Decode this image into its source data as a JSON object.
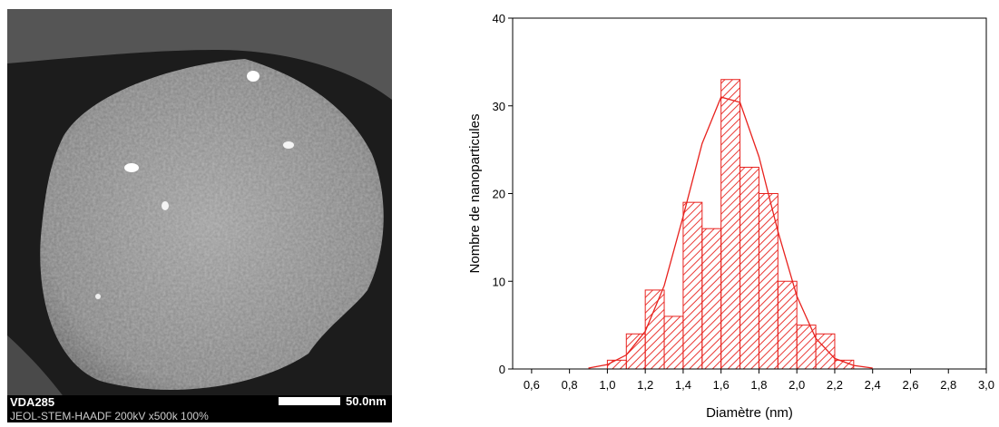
{
  "image": {
    "sample": "VDA285",
    "instrument": "JEOL-STEM-HAADF 200kV x500k 100%",
    "scale_bar": "50.0nm"
  },
  "chart_data": {
    "type": "histogram",
    "xlabel": "Diamètre (nm)",
    "ylabel": "Nombre de nanoparticules",
    "bins": [
      1.0,
      1.1,
      1.2,
      1.3,
      1.4,
      1.5,
      1.6,
      1.7,
      1.8,
      1.9,
      2.0,
      2.1,
      2.2,
      2.3
    ],
    "values": [
      1,
      4,
      9,
      6,
      19,
      16,
      33,
      23,
      20,
      10,
      5,
      4,
      1
    ],
    "color": "#e8221e",
    "fit": {
      "x": [
        0.9,
        1.0,
        1.1,
        1.2,
        1.3,
        1.4,
        1.5,
        1.6,
        1.7,
        1.8,
        1.9,
        2.0,
        2.1,
        2.2,
        2.3,
        2.4
      ],
      "values": [
        0.1,
        0.5,
        1.6,
        4.3,
        9.5,
        17.4,
        25.7,
        31.0,
        30.4,
        24.2,
        15.7,
        8.3,
        3.5,
        1.2,
        0.4,
        0.1
      ]
    },
    "xlim": [
      0.5,
      3.0
    ],
    "ylim": [
      0,
      40
    ],
    "xticks": [
      {
        "value": 0.6,
        "label": "0,6"
      },
      {
        "value": 0.8,
        "label": "0,8"
      },
      {
        "value": 1.0,
        "label": "1,0"
      },
      {
        "value": 1.2,
        "label": "1,2"
      },
      {
        "value": 1.4,
        "label": "1,4"
      },
      {
        "value": 1.6,
        "label": "1,6"
      },
      {
        "value": 1.8,
        "label": "1,8"
      },
      {
        "value": 2.0,
        "label": "2,0"
      },
      {
        "value": 2.2,
        "label": "2,2"
      },
      {
        "value": 2.4,
        "label": "2,4"
      },
      {
        "value": 2.6,
        "label": "2,6"
      },
      {
        "value": 2.8,
        "label": "2,8"
      },
      {
        "value": 3.0,
        "label": "3,0"
      }
    ],
    "yticks": [
      0,
      10,
      20,
      30,
      40
    ]
  }
}
